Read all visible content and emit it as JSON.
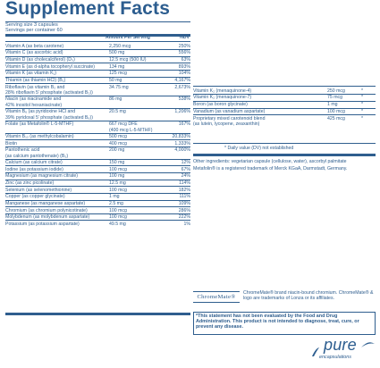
{
  "title": "Supplement Facts",
  "serving_size": "Serving size 3 capsules",
  "servings_per_container": "Servings per container 60",
  "header": {
    "amount": "Amount Per Serving",
    "dv": "%DV"
  },
  "left_rows": [
    {
      "lines": [
        "Vitamin A (as beta carotene)"
      ],
      "amount": "2,250 mcg",
      "dv": "250%"
    },
    {
      "lines": [
        "Vitamin C (as ascorbic acid)"
      ],
      "amount": "500 mg",
      "dv": "556%"
    },
    {
      "lines": [
        "Vitamin D (as cholecalciferol) (D₃)"
      ],
      "amount": "12.5 mcg (500 IU)",
      "dv": "63%"
    },
    {
      "lines": [
        "Vitamin E (as d-alpha tocopheryl succinate)"
      ],
      "amount": "134 mg",
      "dv": "893%"
    },
    {
      "lines": [
        "Vitamin K (as vitamin K₁)"
      ],
      "amount": "125 mcg",
      "dv": "104%"
    },
    {
      "lines": [
        "Thiamin (as thiamin HCl) (B₁)"
      ],
      "amount": "50 mg",
      "dv": "4,167%"
    },
    {
      "lines": [
        "Riboflavin (as vitamin B₂ and",
        "28% riboflavin 5’ phosphate (activated B₂))"
      ],
      "amount": "34.75 mg",
      "dv": "2,673%"
    },
    {
      "lines": [
        "Niacin (as niacinamide and",
        "42% inositol hexaniacinate)"
      ],
      "amount": "86 mg",
      "dv": "538%"
    },
    {
      "lines": [
        "Vitamin B₆ (as pyridoxine HCl and",
        "39% pyridoxal 5’ phosphate (activated B₆))"
      ],
      "amount": "20.5 mg",
      "dv": "1,206%"
    },
    {
      "lines": [
        "Folate (as Metafolin® L-5-MTHF)"
      ],
      "amount_lines": [
        "667 mcg DFE",
        "(400 mcg L-5-MTHF)"
      ],
      "dv": "167%"
    },
    {
      "lines": [
        "Vitamin B₁₂ (as methylcobalamin)"
      ],
      "amount": "500 mcg",
      "dv": "20,833%"
    },
    {
      "lines": [
        "Biotin"
      ],
      "amount": "400 mcg",
      "dv": "1,333%"
    },
    {
      "lines": [
        "Pantothenic acid",
        "(as calcium pantothenate) (B₅)"
      ],
      "amount": "200 mg",
      "dv": "4,000%"
    },
    {
      "lines": [
        "Calcium (as calcium citrate)"
      ],
      "amount": "150 mg",
      "dv": "12%"
    },
    {
      "lines": [
        "Iodine (as potassium iodide)"
      ],
      "amount": "100 mcg",
      "dv": "67%"
    },
    {
      "lines": [
        "Magnesium (as magnesium citrate)"
      ],
      "amount": "100 mg",
      "dv": "24%"
    },
    {
      "lines": [
        "Zinc (as zinc picolinate)"
      ],
      "amount": "12.5 mg",
      "dv": "114%"
    },
    {
      "lines": [
        "Selenium (as selenomethionine)"
      ],
      "amount": "100 mcg",
      "dv": "182%"
    },
    {
      "lines": [
        "Copper (as copper glycinate)"
      ],
      "amount": "1 mg",
      "dv": "111%"
    },
    {
      "lines": [
        "Manganese (as manganese aspartate)"
      ],
      "amount": "2.5 mg",
      "dv": "109%"
    },
    {
      "lines": [
        "Chromium (as chromium polynicotinate)"
      ],
      "amount": "100 mcg",
      "dv": "286%"
    },
    {
      "lines": [
        "Molybdenum (as molybdenum aspartate)"
      ],
      "amount": "100 mcg",
      "dv": "222%"
    },
    {
      "lines": [
        "Potassium (as potassium aspartate)"
      ],
      "amount": "49.5 mg",
      "dv": "1%"
    }
  ],
  "right_rows": [
    {
      "lines": [
        "Vitamin K₂ (menaquinone-4)"
      ],
      "amount": "250 mcg",
      "dv": "*"
    },
    {
      "lines": [
        "Vitamin K₂ (menaquinone-7)"
      ],
      "amount": "75 mcg",
      "dv": "*"
    },
    {
      "lines": [
        "Boron (as boron glycinate)"
      ],
      "amount": "1 mg",
      "dv": "*"
    },
    {
      "lines": [
        "Vanadium (as vanadium aspartate)"
      ],
      "amount": "100 mcg",
      "dv": "*"
    },
    {
      "lines": [
        "Proprietary mixed carotenoid blend",
        "(as lutein, lycopene, zeaxanthin)"
      ],
      "amount": "425 mcg",
      "dv": "*"
    }
  ],
  "daily_value_note": "* Daily value (DV) not established",
  "other_ingredients": "Other ingredients: vegetarian capsule (cellulose, water), ascorbyl palmitate",
  "metafolin_note": "Metafolin® is a registered trademark of Merck KGaA, Darmstadt, Germany.",
  "chromemate_logo": "ChromeMate®",
  "chromemate_text": "ChromeMate® brand niacin-bound chromium. ChromeMate® & logo are trademarks of Lonza or its affiliates.",
  "fda_statement": "*This statement has not been evaluated by the Food and Drug Administration. This product is not intended to diagnose, treat, cure, or prevent any disease.",
  "brand": {
    "name": "pure",
    "sub": "encapsulations",
    "color": "#2c5d8f"
  },
  "colors": {
    "text": "#2f5e8e"
  }
}
